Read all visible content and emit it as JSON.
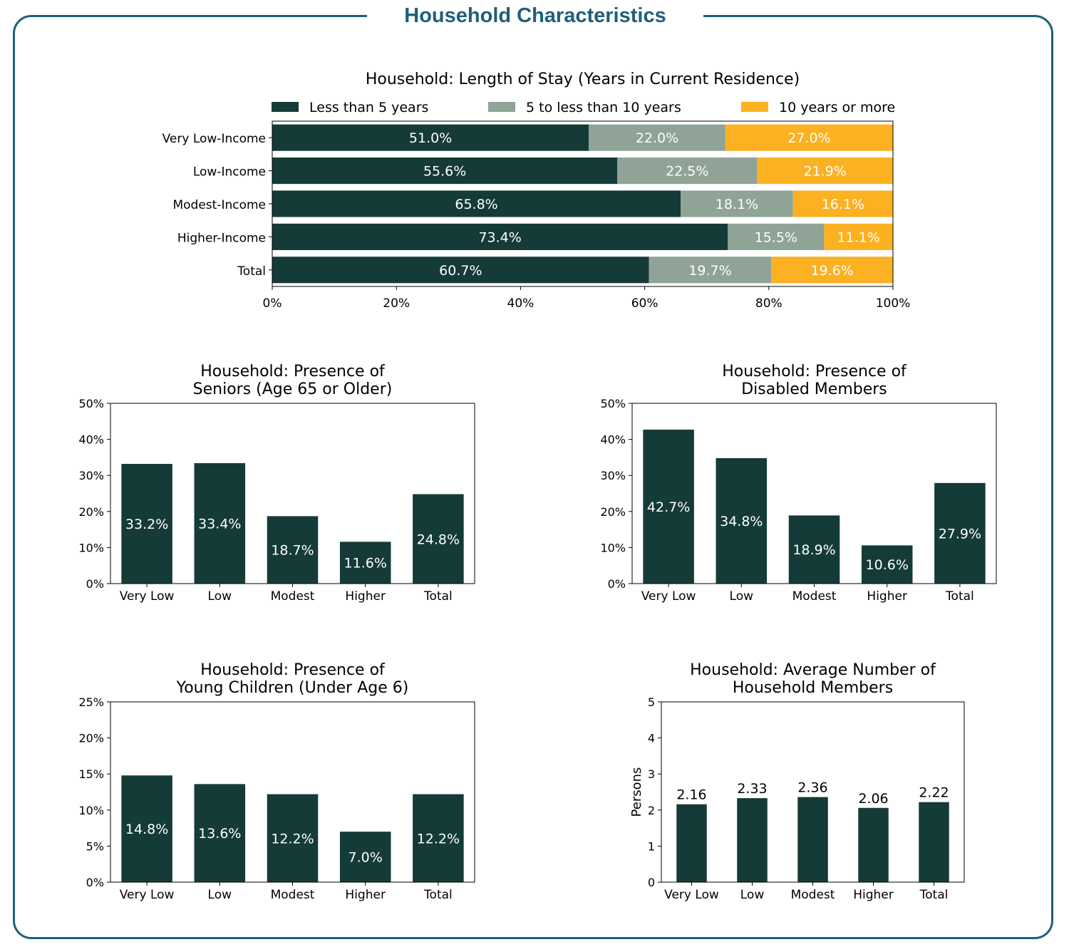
{
  "page": {
    "title": "Household Characteristics"
  },
  "colors": {
    "dark": "#153b38",
    "grey": "#8fa397",
    "gold": "#fbb121",
    "frame": "#1f5f7a"
  },
  "chart_data": [
    {
      "id": "stay",
      "type": "bar",
      "orientation": "horizontal",
      "stacked": true,
      "title": "Household: Length of Stay (Years in Current Residence)",
      "categories": [
        "Very Low-Income",
        "Low-Income",
        "Modest-Income",
        "Higher-Income",
        "Total"
      ],
      "series": [
        {
          "name": "Less than 5 years",
          "values": [
            51.0,
            55.6,
            65.8,
            73.4,
            60.7
          ],
          "labels": [
            "51.0%",
            "55.6%",
            "65.8%",
            "73.4%",
            "60.7%"
          ]
        },
        {
          "name": "5 to less than 10 years",
          "values": [
            22.0,
            22.5,
            18.1,
            15.5,
            19.7
          ],
          "labels": [
            "22.0%",
            "22.5%",
            "18.1%",
            "15.5%",
            "19.7%"
          ]
        },
        {
          "name": "10 years or more",
          "values": [
            27.0,
            21.9,
            16.1,
            11.1,
            19.6
          ],
          "labels": [
            "27.0%",
            "21.9%",
            "16.1%",
            "11.1%",
            "19.6%"
          ]
        }
      ],
      "xlim": [
        0,
        100
      ],
      "xticks": [
        "0%",
        "20%",
        "40%",
        "60%",
        "80%",
        "100%"
      ],
      "legend": "top"
    },
    {
      "id": "seniors",
      "type": "bar",
      "title_lines": [
        "Household: Presence of",
        "Seniors (Age 65 or Older)"
      ],
      "categories": [
        "Very Low",
        "Low",
        "Modest",
        "Higher",
        "Total"
      ],
      "values": [
        33.2,
        33.4,
        18.7,
        11.6,
        24.8
      ],
      "value_labels": [
        "33.2%",
        "33.4%",
        "18.7%",
        "11.6%",
        "24.8%"
      ],
      "ylim": [
        0,
        50
      ],
      "yticks": [
        "0%",
        "10%",
        "20%",
        "30%",
        "40%",
        "50%"
      ],
      "ylabel": ""
    },
    {
      "id": "disabled",
      "type": "bar",
      "title_lines": [
        "Household: Presence of",
        "Disabled Members"
      ],
      "categories": [
        "Very Low",
        "Low",
        "Modest",
        "Higher",
        "Total"
      ],
      "values": [
        42.7,
        34.8,
        18.9,
        10.6,
        27.9
      ],
      "value_labels": [
        "42.7%",
        "34.8%",
        "18.9%",
        "10.6%",
        "27.9%"
      ],
      "ylim": [
        0,
        50
      ],
      "yticks": [
        "0%",
        "10%",
        "20%",
        "30%",
        "40%",
        "50%"
      ],
      "ylabel": ""
    },
    {
      "id": "children",
      "type": "bar",
      "title_lines": [
        "Household: Presence of",
        "Young Children (Under Age 6)"
      ],
      "categories": [
        "Very Low",
        "Low",
        "Modest",
        "Higher",
        "Total"
      ],
      "values": [
        14.8,
        13.6,
        12.2,
        7.0,
        12.2
      ],
      "value_labels": [
        "14.8%",
        "13.6%",
        "12.2%",
        "7.0%",
        "12.2%"
      ],
      "ylim": [
        0,
        25
      ],
      "yticks": [
        "0%",
        "5%",
        "10%",
        "15%",
        "20%",
        "25%"
      ],
      "ylabel": ""
    },
    {
      "id": "members",
      "type": "bar",
      "title_lines": [
        "Household: Average Number of",
        "Household Members"
      ],
      "categories": [
        "Very Low",
        "Low",
        "Modest",
        "Higher",
        "Total"
      ],
      "values": [
        2.16,
        2.33,
        2.36,
        2.06,
        2.22
      ],
      "value_labels": [
        "2.16",
        "2.33",
        "2.36",
        "2.06",
        "2.22"
      ],
      "ylim": [
        0,
        5
      ],
      "yticks": [
        "0",
        "1",
        "2",
        "3",
        "4",
        "5"
      ],
      "ylabel": "Persons"
    }
  ]
}
